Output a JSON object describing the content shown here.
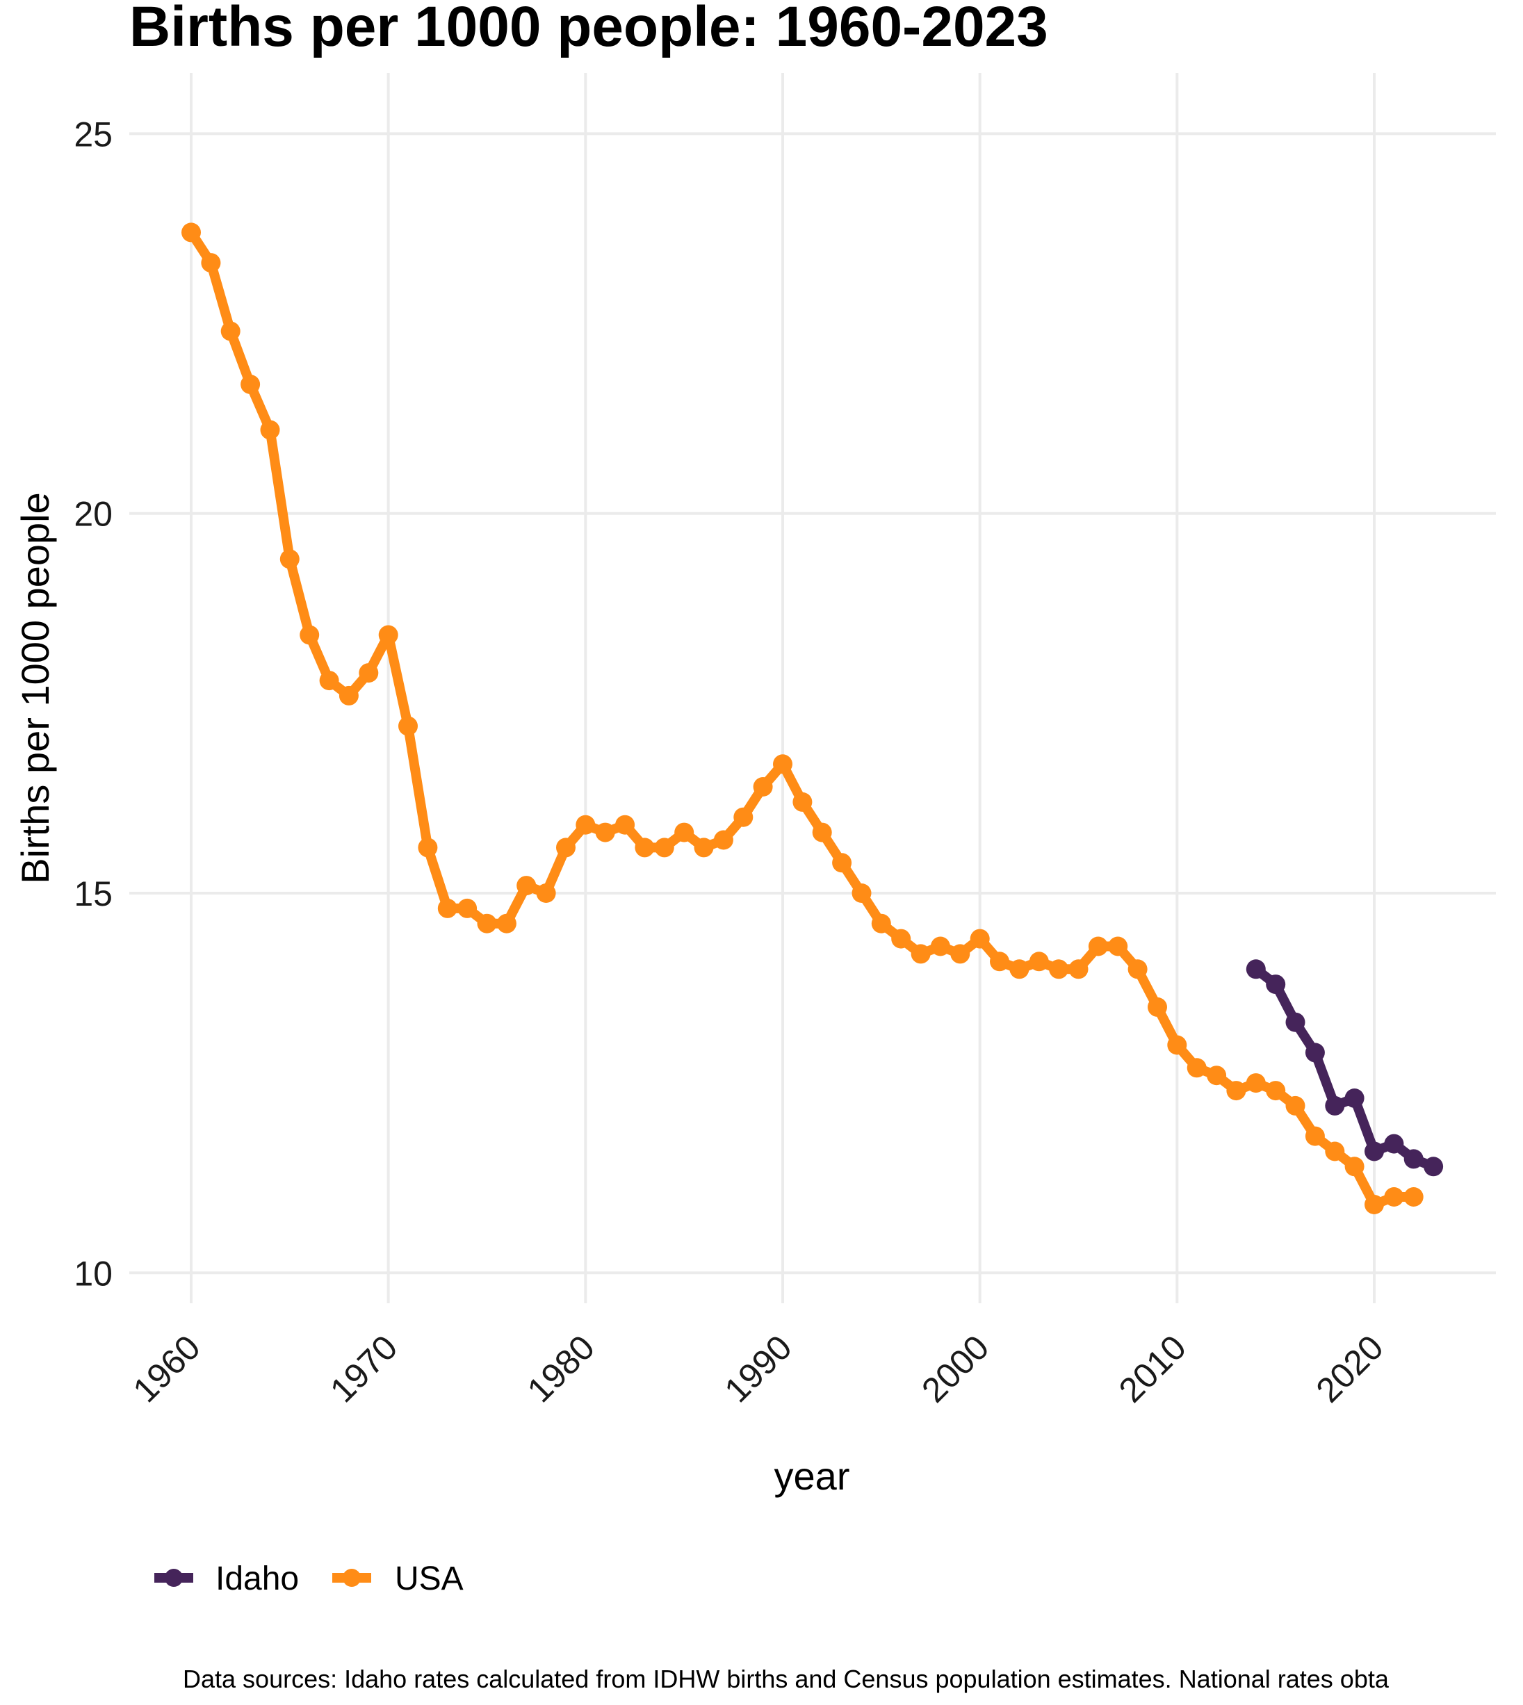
{
  "chart_data": {
    "type": "line",
    "title": "Births per 1000 people: 1960-2023",
    "xlabel": "year",
    "ylabel": "Births per 1000 people",
    "xlim": [
      1960,
      2023
    ],
    "ylim": [
      9.6,
      25.8
    ],
    "x_ticks": [
      "1960",
      "1970",
      "1980",
      "1990",
      "2000",
      "2010",
      "2020"
    ],
    "y_ticks": [
      "10",
      "15",
      "20",
      "25"
    ],
    "grid": true,
    "legend_position": "bottom-left",
    "series": [
      {
        "name": "Idaho",
        "color": "#45245a",
        "x": [
          2014,
          2015,
          2016,
          2017,
          2018,
          2019,
          2020,
          2021,
          2022,
          2023
        ],
        "y": [
          14.0,
          13.8,
          13.3,
          12.9,
          12.2,
          12.3,
          11.6,
          11.7,
          11.5,
          11.4
        ]
      },
      {
        "name": "USA",
        "color": "#ff8c16",
        "x": [
          1960,
          1961,
          1962,
          1963,
          1964,
          1965,
          1966,
          1967,
          1968,
          1969,
          1970,
          1971,
          1972,
          1973,
          1974,
          1975,
          1976,
          1977,
          1978,
          1979,
          1980,
          1981,
          1982,
          1983,
          1984,
          1985,
          1986,
          1987,
          1988,
          1989,
          1990,
          1991,
          1992,
          1993,
          1994,
          1995,
          1996,
          1997,
          1998,
          1999,
          2000,
          2001,
          2002,
          2003,
          2004,
          2005,
          2006,
          2007,
          2008,
          2009,
          2010,
          2011,
          2012,
          2013,
          2014,
          2015,
          2016,
          2017,
          2018,
          2019,
          2020,
          2021,
          2022
        ],
        "y": [
          23.7,
          23.3,
          22.4,
          21.7,
          21.1,
          19.4,
          18.4,
          17.8,
          17.6,
          17.9,
          18.4,
          17.2,
          15.6,
          14.8,
          14.8,
          14.6,
          14.6,
          15.1,
          15.0,
          15.6,
          15.9,
          15.8,
          15.9,
          15.6,
          15.6,
          15.8,
          15.6,
          15.7,
          16.0,
          16.4,
          16.7,
          16.2,
          15.8,
          15.4,
          15.0,
          14.6,
          14.4,
          14.2,
          14.3,
          14.2,
          14.4,
          14.1,
          14.0,
          14.1,
          14.0,
          14.0,
          14.3,
          14.3,
          14.0,
          13.5,
          13.0,
          12.7,
          12.6,
          12.4,
          12.5,
          12.4,
          12.2,
          11.8,
          11.6,
          11.4,
          10.9,
          11.0,
          11.0
        ]
      }
    ]
  },
  "legend": {
    "items": [
      "Idaho",
      "USA"
    ]
  },
  "caption": "Data sources: Idaho rates calculated from IDHW births and Census population estimates. National rates obta"
}
